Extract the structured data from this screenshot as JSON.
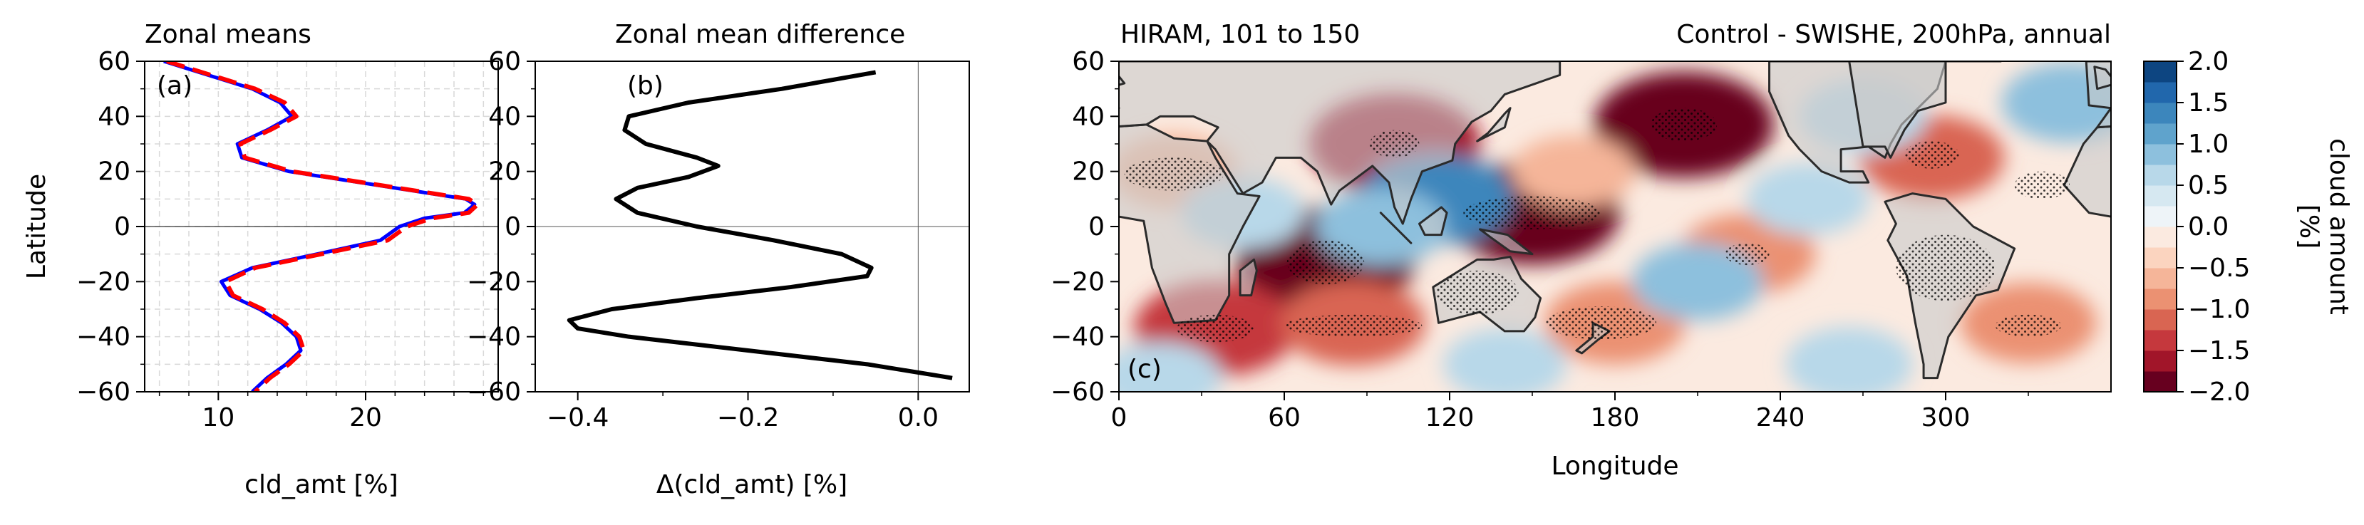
{
  "chart_data": [
    {
      "type": "line",
      "title": "Zonal means",
      "panel_label": "(a)",
      "xlabel": "cld_amt [%]",
      "ylabel": "Latitude",
      "xlim": [
        5,
        29
      ],
      "ylim": [
        -60,
        60
      ],
      "xticks": [
        10,
        20
      ],
      "yticks": [
        -60,
        -40,
        -20,
        0,
        20,
        40,
        60
      ],
      "grid": true,
      "series": [
        {
          "color": "#ff0000",
          "dashed": true,
          "y": [
            60,
            55,
            50,
            45,
            40,
            35,
            30,
            25,
            20,
            15,
            10,
            8,
            5,
            3,
            0,
            -5,
            -10,
            -15,
            -20,
            -25,
            -30,
            -35,
            -40,
            -45,
            -50,
            -55,
            -60
          ],
          "x": [
            6.5,
            9.5,
            12.5,
            14.5,
            15.3,
            13.5,
            11.5,
            11.8,
            15.0,
            21.0,
            27.0,
            27.6,
            27.0,
            24.5,
            22.8,
            21.5,
            17.0,
            12.5,
            10.5,
            11.0,
            13.0,
            14.5,
            15.5,
            15.8,
            14.8,
            13.5,
            12.5
          ]
        },
        {
          "color": "#0000ff",
          "dashed": false,
          "y": [
            60,
            55,
            50,
            45,
            40,
            35,
            30,
            25,
            20,
            15,
            10,
            8,
            5,
            3,
            0,
            -5,
            -10,
            -15,
            -20,
            -25,
            -30,
            -35,
            -40,
            -45,
            -50,
            -55,
            -60
          ],
          "x": [
            6.3,
            9.3,
            12.3,
            14.2,
            15.0,
            13.3,
            11.3,
            11.6,
            14.8,
            20.8,
            26.8,
            27.4,
            26.7,
            24.0,
            22.3,
            21.0,
            16.7,
            12.3,
            10.2,
            10.8,
            12.8,
            14.3,
            15.3,
            15.6,
            14.6,
            13.3,
            12.3
          ]
        }
      ]
    },
    {
      "type": "line",
      "title": "Zonal mean difference",
      "panel_label": "(b)",
      "xlabel": "Δ(cld_amt) [%]",
      "xlim": [
        -0.45,
        0.06
      ],
      "ylim": [
        -60,
        60
      ],
      "xticks": [
        -0.4,
        -0.2,
        0.0
      ],
      "xtick_labels": [
        "−0.4",
        "−0.2",
        "0.0"
      ],
      "yticks": [
        -60,
        -40,
        -20,
        0,
        20,
        40,
        60
      ],
      "series": [
        {
          "color": "#000000",
          "y": [
            56,
            50,
            45,
            40,
            35,
            30,
            25,
            22,
            18,
            14,
            10,
            5,
            0,
            -5,
            -10,
            -15,
            -18,
            -22,
            -26,
            -30,
            -34,
            -37,
            -40,
            -45,
            -50,
            -55
          ],
          "x": [
            -0.05,
            -0.16,
            -0.27,
            -0.34,
            -0.345,
            -0.32,
            -0.26,
            -0.235,
            -0.27,
            -0.33,
            -0.355,
            -0.33,
            -0.26,
            -0.17,
            -0.09,
            -0.055,
            -0.06,
            -0.15,
            -0.26,
            -0.36,
            -0.41,
            -0.4,
            -0.34,
            -0.2,
            -0.06,
            0.04
          ]
        }
      ]
    },
    {
      "type": "heatmap",
      "title_left": "HIRAM, 101 to 150",
      "title_right": "Control - SWISHE, 200hPa, annual",
      "panel_label": "(c)",
      "xlabel": "Longitude",
      "xlim": [
        0,
        360
      ],
      "ylim": [
        -60,
        60
      ],
      "xticks": [
        0,
        60,
        120,
        180,
        240,
        300
      ],
      "yticks": [
        -60,
        -40,
        -20,
        0,
        20,
        40,
        60
      ],
      "colorbar": {
        "label_line1": "cloud amount",
        "label_line2": "[%]",
        "levels": [
          -2.0,
          -1.75,
          -1.5,
          -1.25,
          -1.0,
          -0.75,
          -0.5,
          -0.25,
          0.0,
          0.25,
          0.5,
          0.75,
          1.0,
          1.25,
          1.5,
          1.75,
          2.0
        ],
        "colors": [
          "#67001f",
          "#a11529",
          "#c5383d",
          "#d96552",
          "#eb9172",
          "#f5b599",
          "#fbd4bf",
          "#fbeae0",
          "#eef4f8",
          "#d6e8f1",
          "#b8d8e9",
          "#8dc0dd",
          "#5fa3cc",
          "#3c86bc",
          "#2167ac",
          "#0d4581"
        ],
        "ticks": [
          2.0,
          1.5,
          1.0,
          0.5,
          0.0,
          -0.5,
          -1.0,
          -1.5,
          -2.0
        ],
        "tick_labels": [
          "2.0",
          "1.5",
          "1.0",
          "0.5",
          "0.0",
          "−0.5",
          "−1.0",
          "−1.5",
          "−2.0"
        ]
      },
      "anomalies": [
        {
          "lon": 205,
          "lat": 37,
          "value": -1.9
        },
        {
          "lon": 100,
          "lat": 30,
          "value": -1.7
        },
        {
          "lon": 150,
          "lat": 5,
          "value": -1.8
        },
        {
          "lon": 75,
          "lat": -12,
          "value": -1.9
        },
        {
          "lon": 35,
          "lat": -37,
          "value": -1.5
        },
        {
          "lon": 85,
          "lat": -35,
          "value": -1.1
        },
        {
          "lon": 228,
          "lat": -10,
          "value": -0.9
        },
        {
          "lon": 180,
          "lat": -35,
          "value": -1.0
        },
        {
          "lon": 295,
          "lat": 25,
          "value": -1.1
        },
        {
          "lon": 330,
          "lat": -35,
          "value": -0.9
        },
        {
          "lon": 20,
          "lat": 20,
          "value": -0.7
        },
        {
          "lon": 115,
          "lat": 10,
          "value": 1.3
        },
        {
          "lon": 95,
          "lat": 0,
          "value": 0.8
        },
        {
          "lon": 210,
          "lat": -20,
          "value": 0.8
        },
        {
          "lon": 265,
          "lat": -50,
          "value": 0.7
        },
        {
          "lon": 45,
          "lat": 5,
          "value": 0.6
        },
        {
          "lon": 250,
          "lat": 10,
          "value": 0.6
        },
        {
          "lon": 345,
          "lat": 45,
          "value": 0.9
        },
        {
          "lon": 140,
          "lat": -50,
          "value": 0.6
        },
        {
          "lon": 270,
          "lat": 40,
          "value": 0.7
        },
        {
          "lon": 15,
          "lat": -55,
          "value": 0.6
        },
        {
          "lon": 165,
          "lat": 20,
          "value": -0.6
        }
      ]
    }
  ]
}
